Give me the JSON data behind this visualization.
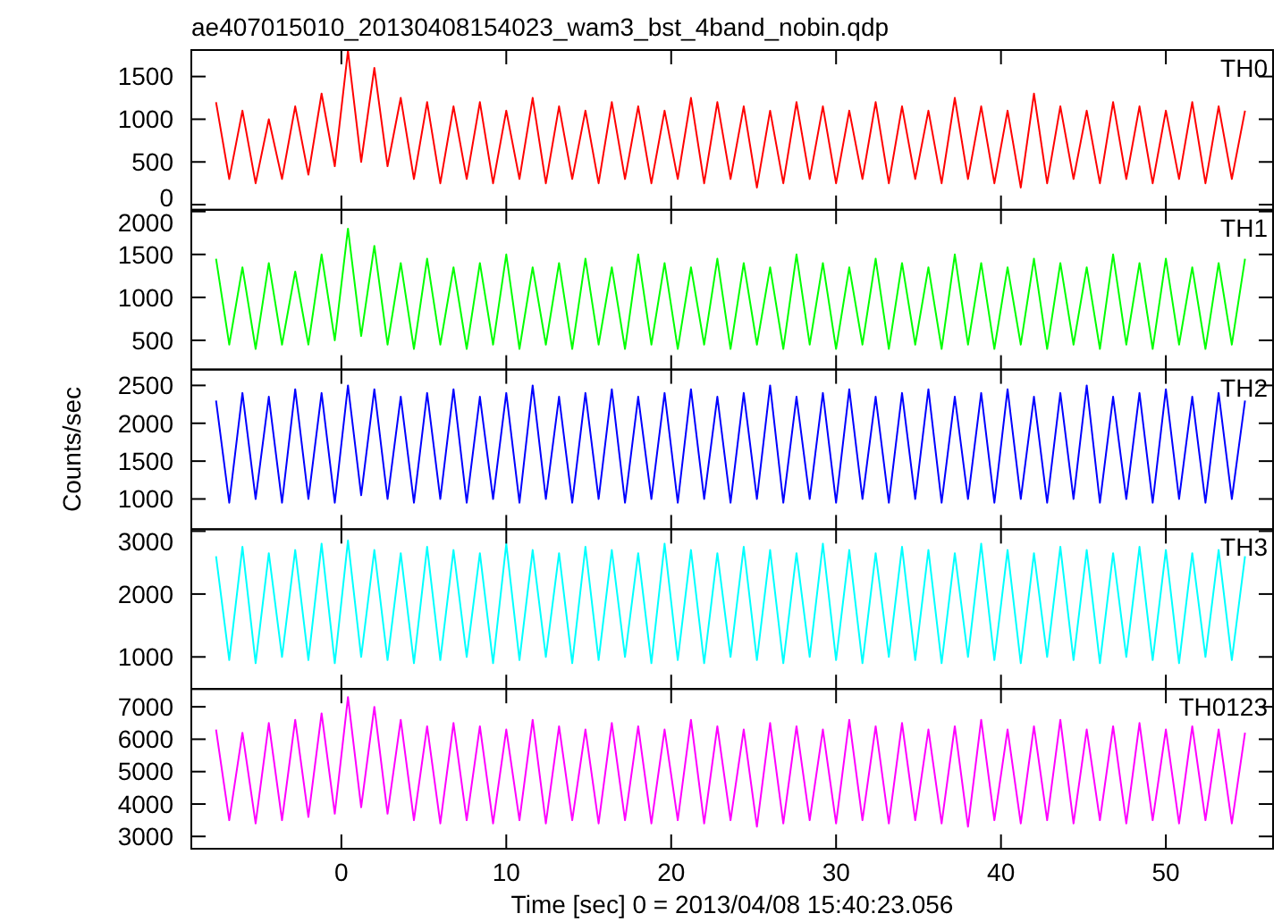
{
  "chart_data": [
    {
      "type": "line",
      "title": "ae407015010_20130408154023_wam3_bst_4band_nobin.qdp",
      "tick_labels": "y",
      "xlim": [
        -9.1,
        56.5
      ],
      "ylim": [
        -60,
        1810
      ],
      "yticks": [
        0,
        500,
        1000,
        1500
      ],
      "x": [
        -7.6,
        -6.8,
        -6,
        -5.2,
        -4.4,
        -3.6,
        -2.8,
        -2,
        -1.2,
        -0.4,
        0.4,
        1.2,
        2,
        2.8,
        3.6,
        4.4,
        5.2,
        6,
        6.8,
        7.6,
        8.4,
        9.2,
        10,
        10.8,
        11.6,
        12.4,
        13.2,
        14,
        14.8,
        15.6,
        16.4,
        17.2,
        18,
        18.8,
        19.6,
        20.4,
        21.2,
        22,
        22.8,
        23.6,
        24.4,
        25.2,
        26,
        26.8,
        27.6,
        28.4,
        29.2,
        30,
        30.8,
        31.6,
        32.4,
        33.2,
        34,
        34.8,
        35.6,
        36.4,
        37.2,
        38,
        38.8,
        39.6,
        40.4,
        41.2,
        42,
        42.8,
        43.6,
        44.4,
        45.2,
        46,
        46.8,
        47.6,
        48.4,
        49.2,
        50,
        50.8,
        51.6,
        52.4,
        53.2,
        54,
        54.8
      ],
      "series": [
        {
          "name": "TH0",
          "color": "#ff0000",
          "values": [
            1200,
            300,
            1100,
            250,
            1000,
            300,
            1150,
            350,
            1300,
            450,
            1800,
            500,
            1600,
            450,
            1250,
            300,
            1200,
            250,
            1150,
            300,
            1200,
            250,
            1100,
            300,
            1250,
            250,
            1150,
            300,
            1100,
            250,
            1200,
            300,
            1150,
            250,
            1100,
            300,
            1250,
            250,
            1200,
            300,
            1150,
            200,
            1100,
            250,
            1200,
            300,
            1150,
            250,
            1100,
            300,
            1200,
            250,
            1150,
            300,
            1100,
            250,
            1250,
            300,
            1150,
            250,
            1100,
            200,
            1300,
            250,
            1150,
            300,
            1100,
            250,
            1200,
            300,
            1150,
            250,
            1100,
            300,
            1200,
            250,
            1150,
            300,
            1100
          ]
        }
      ]
    },
    {
      "type": "line",
      "tick_labels": "y",
      "xlim": [
        -9.1,
        56.5
      ],
      "ylim": [
        160,
        2020
      ],
      "yticks": [
        500,
        1000,
        1500,
        2000
      ],
      "x": [
        -7.6,
        -6.8,
        -6,
        -5.2,
        -4.4,
        -3.6,
        -2.8,
        -2,
        -1.2,
        -0.4,
        0.4,
        1.2,
        2,
        2.8,
        3.6,
        4.4,
        5.2,
        6,
        6.8,
        7.6,
        8.4,
        9.2,
        10,
        10.8,
        11.6,
        12.4,
        13.2,
        14,
        14.8,
        15.6,
        16.4,
        17.2,
        18,
        18.8,
        19.6,
        20.4,
        21.2,
        22,
        22.8,
        23.6,
        24.4,
        25.2,
        26,
        26.8,
        27.6,
        28.4,
        29.2,
        30,
        30.8,
        31.6,
        32.4,
        33.2,
        34,
        34.8,
        35.6,
        36.4,
        37.2,
        38,
        38.8,
        39.6,
        40.4,
        41.2,
        42,
        42.8,
        43.6,
        44.4,
        45.2,
        46,
        46.8,
        47.6,
        48.4,
        49.2,
        50,
        50.8,
        51.6,
        52.4,
        53.2,
        54,
        54.8
      ],
      "series": [
        {
          "name": "TH1",
          "color": "#00ff00",
          "values": [
            1450,
            450,
            1350,
            400,
            1400,
            450,
            1300,
            450,
            1500,
            500,
            1800,
            550,
            1600,
            450,
            1400,
            400,
            1450,
            450,
            1350,
            400,
            1400,
            450,
            1500,
            400,
            1350,
            450,
            1400,
            400,
            1450,
            450,
            1350,
            400,
            1500,
            450,
            1400,
            400,
            1350,
            450,
            1450,
            400,
            1400,
            450,
            1350,
            400,
            1500,
            450,
            1400,
            400,
            1350,
            450,
            1450,
            400,
            1400,
            450,
            1350,
            400,
            1500,
            450,
            1400,
            400,
            1350,
            450,
            1450,
            400,
            1400,
            450,
            1350,
            400,
            1500,
            450,
            1400,
            400,
            1450,
            450,
            1350,
            400,
            1400,
            450,
            1450
          ]
        }
      ]
    },
    {
      "type": "line",
      "tick_labels": "y",
      "ylabel": "Counts/sec",
      "xlim": [
        -9.1,
        56.5
      ],
      "ylim": [
        600,
        2710
      ],
      "yticks": [
        1000,
        1500,
        2000,
        2500
      ],
      "x": [
        -7.6,
        -6.8,
        -6,
        -5.2,
        -4.4,
        -3.6,
        -2.8,
        -2,
        -1.2,
        -0.4,
        0.4,
        1.2,
        2,
        2.8,
        3.6,
        4.4,
        5.2,
        6,
        6.8,
        7.6,
        8.4,
        9.2,
        10,
        10.8,
        11.6,
        12.4,
        13.2,
        14,
        14.8,
        15.6,
        16.4,
        17.2,
        18,
        18.8,
        19.6,
        20.4,
        21.2,
        22,
        22.8,
        23.6,
        24.4,
        25.2,
        26,
        26.8,
        27.6,
        28.4,
        29.2,
        30,
        30.8,
        31.6,
        32.4,
        33.2,
        34,
        34.8,
        35.6,
        36.4,
        37.2,
        38,
        38.8,
        39.6,
        40.4,
        41.2,
        42,
        42.8,
        43.6,
        44.4,
        45.2,
        46,
        46.8,
        47.6,
        48.4,
        49.2,
        50,
        50.8,
        51.6,
        52.4,
        53.2,
        54,
        54.8
      ],
      "series": [
        {
          "name": "TH2",
          "color": "#0000ff",
          "values": [
            2300,
            950,
            2400,
            1000,
            2350,
            950,
            2450,
            1000,
            2400,
            950,
            2500,
            1050,
            2450,
            1000,
            2350,
            950,
            2400,
            1000,
            2450,
            950,
            2350,
            1000,
            2400,
            950,
            2500,
            1000,
            2350,
            950,
            2400,
            1000,
            2450,
            950,
            2350,
            1000,
            2400,
            950,
            2450,
            1000,
            2350,
            950,
            2400,
            1000,
            2500,
            950,
            2350,
            1000,
            2400,
            950,
            2450,
            1000,
            2350,
            950,
            2400,
            1000,
            2450,
            950,
            2350,
            1000,
            2400,
            950,
            2450,
            1000,
            2350,
            950,
            2400,
            1000,
            2500,
            950,
            2350,
            1000,
            2400,
            950,
            2450,
            1000,
            2350,
            950,
            2400,
            1000,
            2300
          ]
        }
      ]
    },
    {
      "type": "line",
      "tick_labels": "y",
      "xlim": [
        -9.1,
        56.5
      ],
      "ylim": [
        490,
        3030
      ],
      "yticks": [
        1000,
        2000,
        3000
      ],
      "x": [
        -7.6,
        -6.8,
        -6,
        -5.2,
        -4.4,
        -3.6,
        -2.8,
        -2,
        -1.2,
        -0.4,
        0.4,
        1.2,
        2,
        2.8,
        3.6,
        4.4,
        5.2,
        6,
        6.8,
        7.6,
        8.4,
        9.2,
        10,
        10.8,
        11.6,
        12.4,
        13.2,
        14,
        14.8,
        15.6,
        16.4,
        17.2,
        18,
        18.8,
        19.6,
        20.4,
        21.2,
        22,
        22.8,
        23.6,
        24.4,
        25.2,
        26,
        26.8,
        27.6,
        28.4,
        29.2,
        30,
        30.8,
        31.6,
        32.4,
        33.2,
        34,
        34.8,
        35.6,
        36.4,
        37.2,
        38,
        38.8,
        39.6,
        40.4,
        41.2,
        42,
        42.8,
        43.6,
        44.4,
        45.2,
        46,
        46.8,
        47.6,
        48.4,
        49.2,
        50,
        50.8,
        51.6,
        52.4,
        53.2,
        54,
        54.8
      ],
      "series": [
        {
          "name": "TH3",
          "color": "#00ffff",
          "values": [
            2600,
            950,
            2750,
            900,
            2650,
            1000,
            2700,
            950,
            2800,
            900,
            2850,
            1000,
            2700,
            950,
            2650,
            900,
            2750,
            950,
            2700,
            1000,
            2650,
            900,
            2800,
            950,
            2700,
            1000,
            2650,
            900,
            2750,
            950,
            2700,
            1000,
            2650,
            900,
            2800,
            950,
            2700,
            900,
            2650,
            1000,
            2750,
            950,
            2700,
            900,
            2650,
            1000,
            2800,
            950,
            2700,
            900,
            2650,
            1000,
            2750,
            950,
            2700,
            900,
            2650,
            1000,
            2800,
            950,
            2700,
            900,
            2650,
            1000,
            2750,
            950,
            2700,
            900,
            2650,
            1000,
            2750,
            950,
            2700,
            900,
            2650,
            1000,
            2700,
            950,
            2600
          ]
        }
      ]
    },
    {
      "type": "line",
      "xlabel": "Time [sec] 0 = 2013/04/08 15:40:23.056",
      "xlim": [
        -9.1,
        56.5
      ],
      "ylim": [
        2620,
        7550
      ],
      "xticks": [
        0,
        10,
        20,
        30,
        40,
        50
      ],
      "yticks": [
        3000,
        4000,
        5000,
        6000,
        7000
      ],
      "x": [
        -7.6,
        -6.8,
        -6,
        -5.2,
        -4.4,
        -3.6,
        -2.8,
        -2,
        -1.2,
        -0.4,
        0.4,
        1.2,
        2,
        2.8,
        3.6,
        4.4,
        5.2,
        6,
        6.8,
        7.6,
        8.4,
        9.2,
        10,
        10.8,
        11.6,
        12.4,
        13.2,
        14,
        14.8,
        15.6,
        16.4,
        17.2,
        18,
        18.8,
        19.6,
        20.4,
        21.2,
        22,
        22.8,
        23.6,
        24.4,
        25.2,
        26,
        26.8,
        27.6,
        28.4,
        29.2,
        30,
        30.8,
        31.6,
        32.4,
        33.2,
        34,
        34.8,
        35.6,
        36.4,
        37.2,
        38,
        38.8,
        39.6,
        40.4,
        41.2,
        42,
        42.8,
        43.6,
        44.4,
        45.2,
        46,
        46.8,
        47.6,
        48.4,
        49.2,
        50,
        50.8,
        51.6,
        52.4,
        53.2,
        54,
        54.8
      ],
      "series": [
        {
          "name": "TH0123",
          "color": "#ff00ff",
          "values": [
            6300,
            3500,
            6200,
            3400,
            6500,
            3500,
            6600,
            3600,
            6800,
            3700,
            7300,
            3900,
            7000,
            3700,
            6600,
            3500,
            6400,
            3400,
            6500,
            3500,
            6400,
            3400,
            6300,
            3500,
            6600,
            3400,
            6400,
            3500,
            6300,
            3400,
            6500,
            3500,
            6400,
            3400,
            6300,
            3500,
            6600,
            3400,
            6400,
            3500,
            6300,
            3300,
            6500,
            3400,
            6400,
            3500,
            6300,
            3400,
            6600,
            3500,
            6400,
            3400,
            6500,
            3500,
            6300,
            3400,
            6400,
            3300,
            6600,
            3500,
            6300,
            3400,
            6400,
            3500,
            6600,
            3400,
            6300,
            3500,
            6400,
            3400,
            6500,
            3500,
            6300,
            3400,
            6400,
            3500,
            6300,
            3400,
            6200
          ]
        }
      ]
    }
  ]
}
